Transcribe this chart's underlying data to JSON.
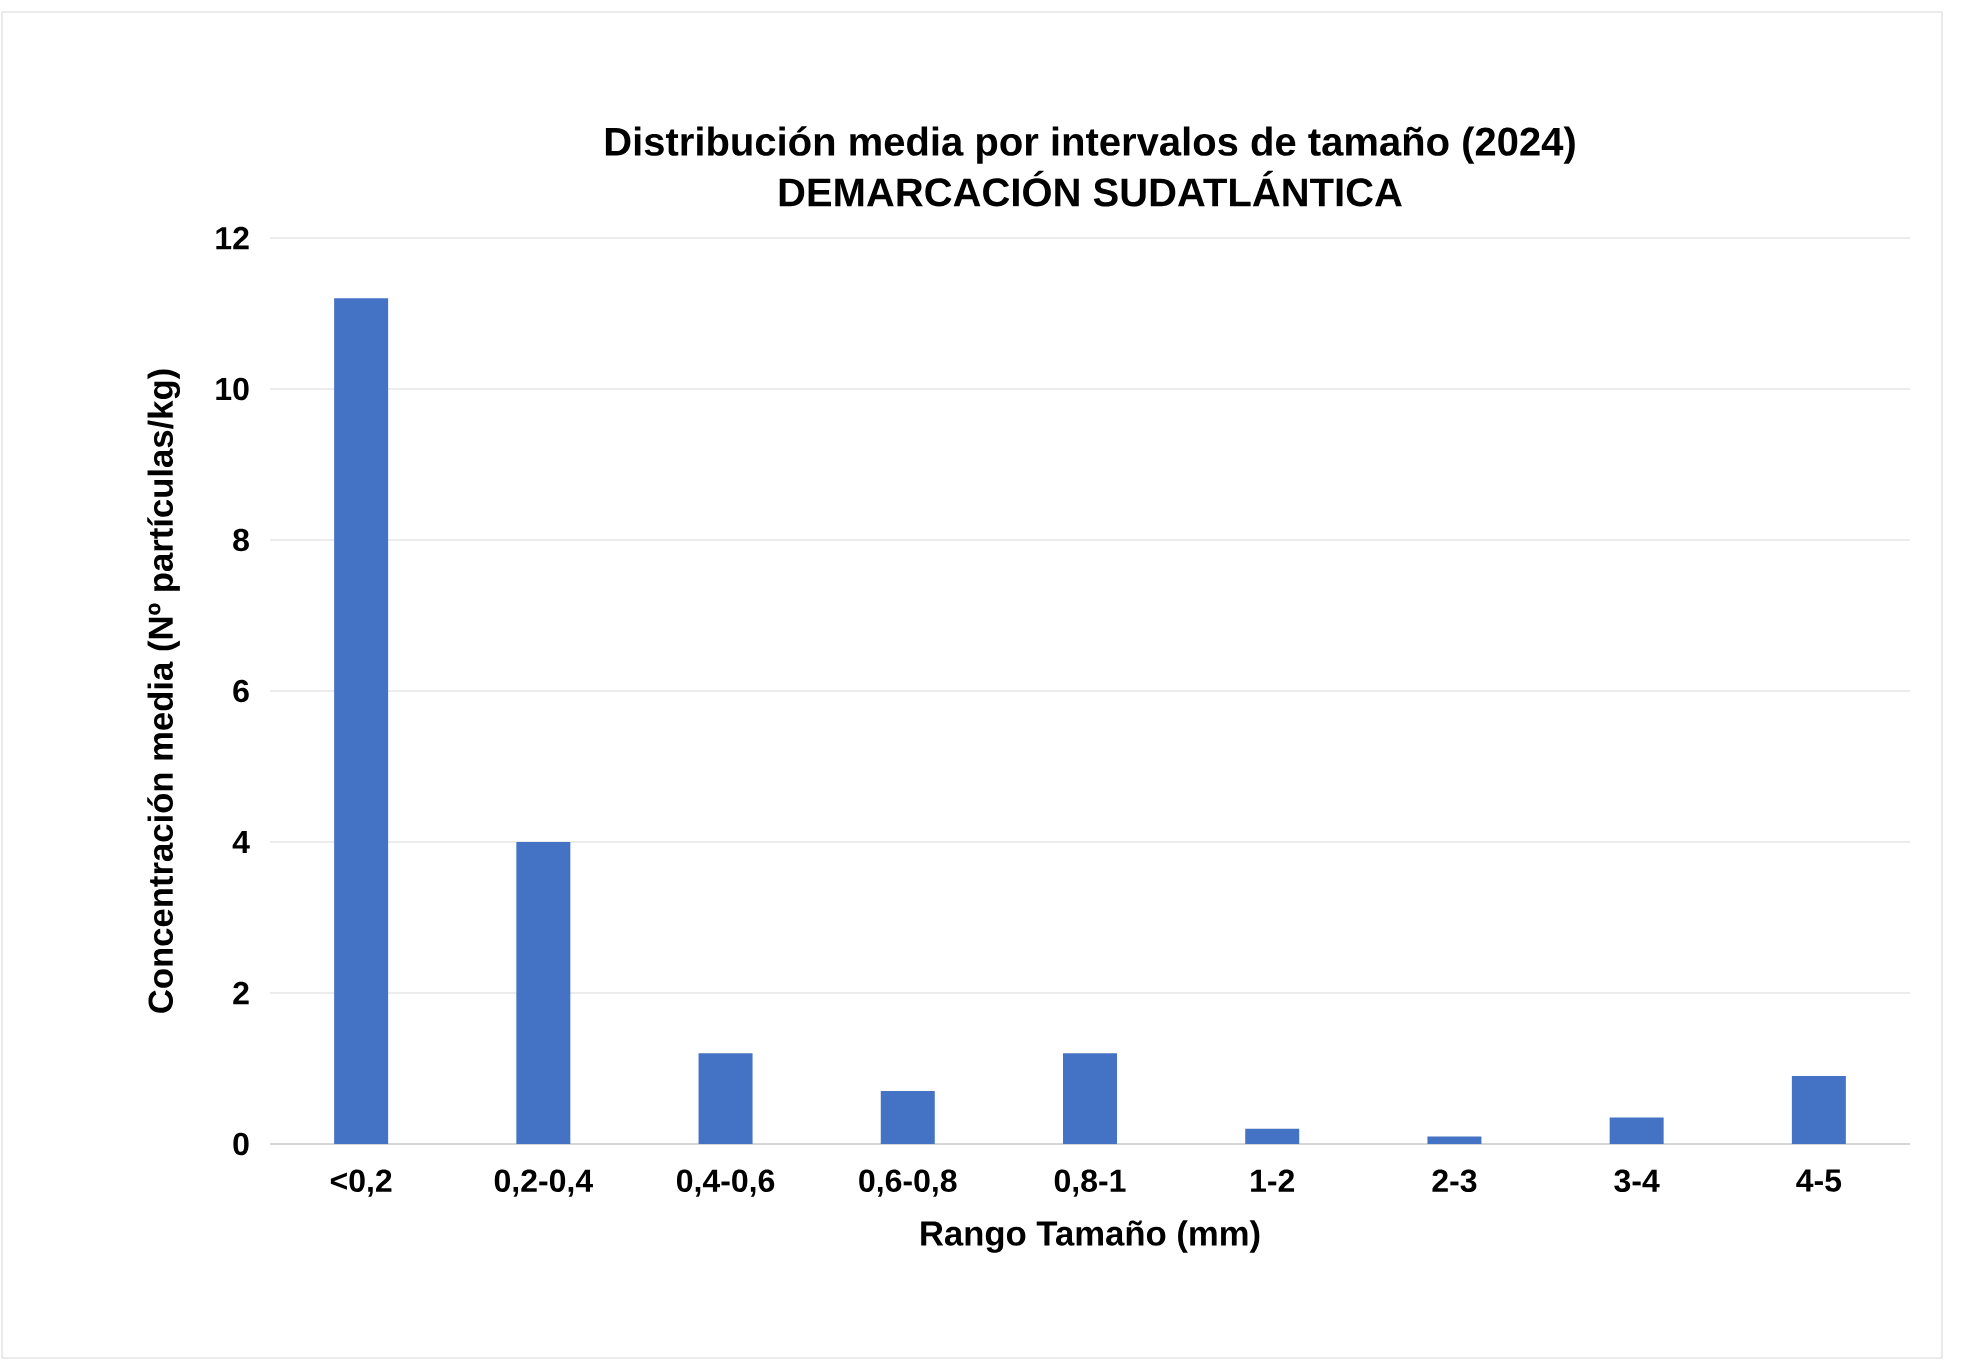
{
  "chart_data": {
    "type": "bar",
    "title": "Distribución media por intervalos de tamaño (2024)",
    "subtitle": "DEMARCACIÓN SUDATLÁNTICA",
    "xlabel": "Rango Tamaño (mm)",
    "ylabel": "Concentración media (Nº partículas/kg)",
    "categories": [
      "<0,2",
      "0,2-0,4",
      "0,4-0,6",
      "0,6-0,8",
      "0,8-1",
      "1-2",
      "2-3",
      "3-4",
      "4-5"
    ],
    "values": [
      11.2,
      4.0,
      1.2,
      0.7,
      1.2,
      0.2,
      0.1,
      0.35,
      0.9
    ],
    "color": "#4472c4",
    "ylim": [
      0,
      12
    ],
    "yticks": [
      0,
      2,
      4,
      6,
      8,
      10,
      12
    ],
    "grid": "y"
  }
}
